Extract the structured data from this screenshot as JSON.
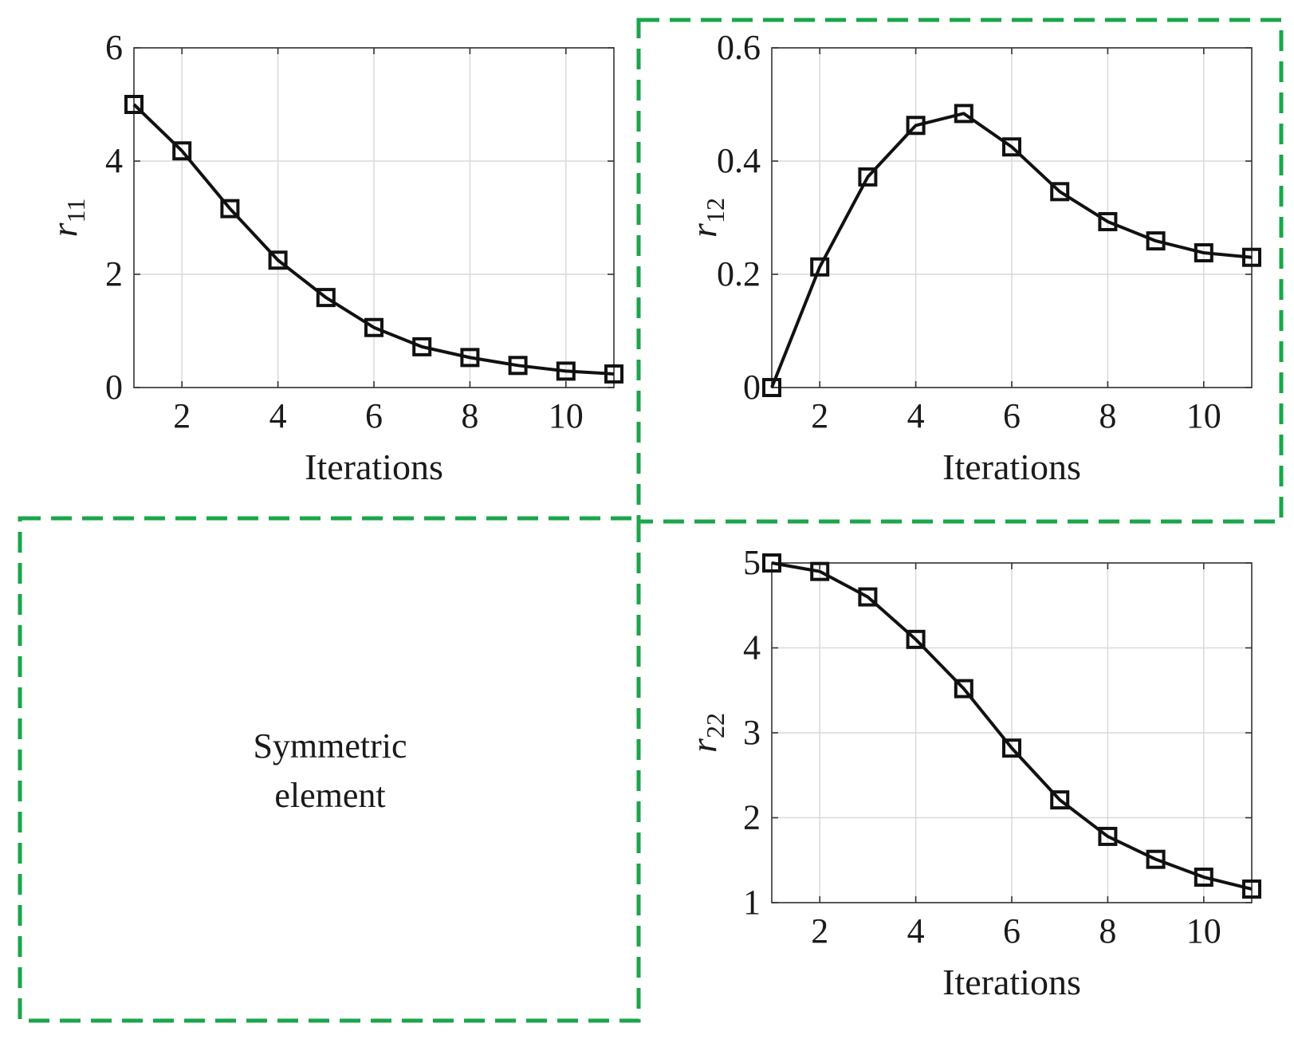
{
  "accent_color": "#1aa64a",
  "symmetric_note": [
    "Symmetric",
    "element"
  ],
  "chart_data": [
    {
      "id": "r11",
      "type": "line",
      "marker": "square",
      "title": "",
      "xlabel": "Iterations",
      "ylabel_base": "r",
      "ylabel_sub": "11",
      "xlim": [
        1,
        11
      ],
      "ylim": [
        0,
        6
      ],
      "xticks": [
        2,
        4,
        6,
        8,
        10
      ],
      "yticks": [
        0,
        2,
        4,
        6
      ],
      "ytick_labels": [
        "0",
        "2",
        "4",
        "6"
      ],
      "grid": true,
      "x": [
        1,
        2,
        3,
        4,
        5,
        6,
        7,
        8,
        9,
        10,
        11
      ],
      "values": [
        5.0,
        4.18,
        3.16,
        2.25,
        1.59,
        1.06,
        0.72,
        0.53,
        0.39,
        0.29,
        0.24
      ]
    },
    {
      "id": "r12",
      "type": "line",
      "marker": "square",
      "title": "",
      "xlabel": "Iterations",
      "ylabel_base": "r",
      "ylabel_sub": "12",
      "xlim": [
        1,
        11
      ],
      "ylim": [
        0,
        0.6
      ],
      "xticks": [
        2,
        4,
        6,
        8,
        10
      ],
      "yticks": [
        0,
        0.2,
        0.4,
        0.6
      ],
      "ytick_labels": [
        "0",
        "0.2",
        "0.4",
        "0.6"
      ],
      "grid": true,
      "x": [
        1,
        2,
        3,
        4,
        5,
        6,
        7,
        8,
        9,
        10,
        11
      ],
      "values": [
        0.0,
        0.213,
        0.372,
        0.463,
        0.484,
        0.425,
        0.346,
        0.293,
        0.259,
        0.238,
        0.23
      ]
    },
    {
      "id": "r22",
      "type": "line",
      "marker": "square",
      "title": "",
      "xlabel": "Iterations",
      "ylabel_base": "r",
      "ylabel_sub": "22",
      "xlim": [
        1,
        11
      ],
      "ylim": [
        1,
        5
      ],
      "xticks": [
        2,
        4,
        6,
        8,
        10
      ],
      "yticks": [
        1,
        2,
        3,
        4,
        5
      ],
      "ytick_labels": [
        "1",
        "2",
        "3",
        "4",
        "5"
      ],
      "grid": true,
      "x": [
        1,
        2,
        3,
        4,
        5,
        6,
        7,
        8,
        9,
        10,
        11
      ],
      "values": [
        5.0,
        4.9,
        4.6,
        4.1,
        3.52,
        2.82,
        2.21,
        1.78,
        1.51,
        1.3,
        1.16
      ]
    }
  ]
}
